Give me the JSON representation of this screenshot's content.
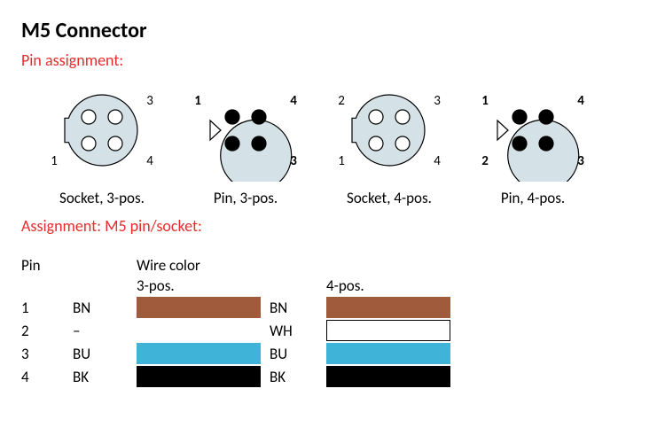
{
  "title": "M5 Connector",
  "section_pin_assignment": "Pin assignment:",
  "section_assignment_table": "Assignment: M5 pin/socket:",
  "connector_style": {
    "body_fill": "#d4e1e6",
    "body_stroke": "#000000",
    "pin_open_fill": "#ffffff",
    "pin_filled_fill": "#000000",
    "label_fontsize": 15
  },
  "connectors": [
    {
      "caption": "Socket, 3-pos.",
      "type": "socket",
      "key_side": "left",
      "pins": [
        {
          "n": "3",
          "pos": "tr",
          "filled": false
        },
        {
          "n": "1",
          "pos": "bl",
          "filled": false
        },
        {
          "n": "4",
          "pos": "br",
          "filled": false
        }
      ],
      "extra_open_dot": "tl"
    },
    {
      "caption": "Pin, 3-pos.",
      "type": "pin",
      "key_side": "left",
      "pins": [
        {
          "n": "1",
          "pos": "tl",
          "filled": true
        },
        {
          "n": "4",
          "pos": "tr",
          "filled": true
        },
        {
          "n": "3",
          "pos": "br",
          "filled": true
        }
      ],
      "extra_filled_dot": "bl"
    },
    {
      "caption": "Socket, 4-pos.",
      "type": "socket",
      "key_side": "left",
      "pins": [
        {
          "n": "2",
          "pos": "tl",
          "filled": false
        },
        {
          "n": "3",
          "pos": "tr",
          "filled": false
        },
        {
          "n": "1",
          "pos": "bl",
          "filled": false
        },
        {
          "n": "4",
          "pos": "br",
          "filled": false
        }
      ]
    },
    {
      "caption": "Pin, 4-pos.",
      "type": "pin",
      "key_side": "left",
      "pins": [
        {
          "n": "1",
          "pos": "tl",
          "filled": true
        },
        {
          "n": "4",
          "pos": "tr",
          "filled": true
        },
        {
          "n": "2",
          "pos": "bl",
          "filled": true
        },
        {
          "n": "3",
          "pos": "br",
          "filled": true
        }
      ]
    }
  ],
  "table": {
    "header_pin": "Pin",
    "header_wire": "Wire color",
    "header_3pos": "3-pos.",
    "header_4pos": "4-pos.",
    "rows": [
      {
        "pin": "1",
        "code3": "BN",
        "color3": "#a05a3c",
        "code4": "BN",
        "color4": "#a05a3c"
      },
      {
        "pin": "2",
        "code3": "–",
        "color3": null,
        "code4": "WH",
        "color4": "#ffffff"
      },
      {
        "pin": "3",
        "code3": "BU",
        "color3": "#3fb3d8",
        "code4": "BU",
        "color4": "#3fb3d8"
      },
      {
        "pin": "4",
        "code3": "BK",
        "color3": "#000000",
        "code4": "BK",
        "color4": "#000000"
      }
    ],
    "swatch_border_for_white": "#000000"
  }
}
